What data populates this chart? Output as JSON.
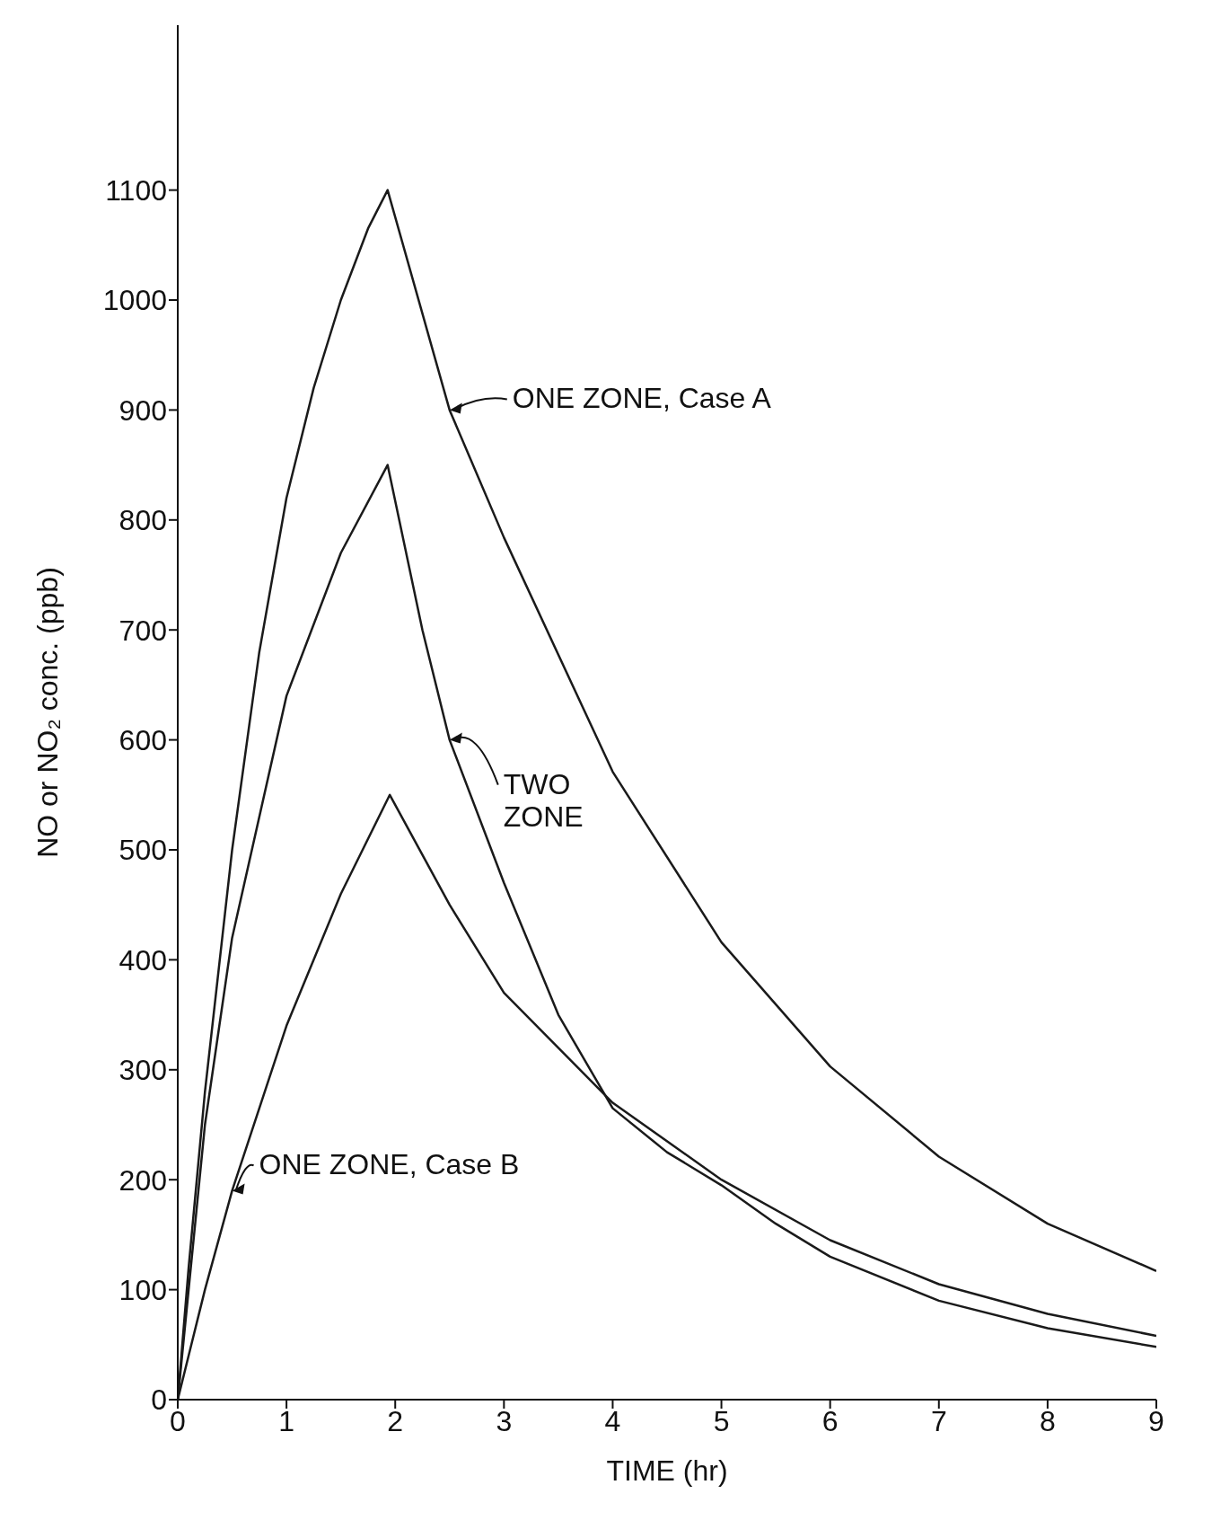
{
  "chart_data": {
    "type": "line",
    "xlabel": "TIME (hr)",
    "ylabel": "NO or NO₂ conc. (ppb)",
    "xlim": [
      0,
      9
    ],
    "xticks": [
      0,
      1,
      2,
      3,
      4,
      5,
      6,
      7,
      8,
      9
    ],
    "ylim": [
      0,
      1250
    ],
    "yticks": [
      0,
      100,
      200,
      300,
      400,
      500,
      600,
      700,
      800,
      900,
      1000,
      1100
    ],
    "grid": false,
    "legend": "left",
    "marker": "none",
    "line_style": "solid",
    "series": [
      {
        "name": "ONE ZONE, Case A",
        "color": "#1a1a1a",
        "x": [
          0,
          0.1,
          0.25,
          0.5,
          0.75,
          1,
          1.25,
          1.5,
          1.75,
          1.93,
          2.5,
          3,
          4,
          5,
          6,
          7,
          8,
          9
        ],
        "values": [
          0,
          120,
          280,
          500,
          680,
          820,
          920,
          1000,
          1065,
          1100,
          900,
          784,
          571,
          416,
          303,
          221,
          160,
          117
        ]
      },
      {
        "name": "TWO ZONE",
        "color": "#1a1a1a",
        "x": [
          0,
          0.1,
          0.25,
          0.5,
          1,
          1.5,
          1.93,
          2.25,
          2.5,
          3,
          3.5,
          4,
          4.5,
          5,
          5.5,
          6,
          7,
          8,
          9
        ],
        "values": [
          0,
          100,
          250,
          420,
          640,
          770,
          850,
          700,
          600,
          470,
          350,
          265,
          225,
          195,
          160,
          130,
          90,
          65,
          48
        ]
      },
      {
        "name": "ONE ZONE, Case B",
        "color": "#1a1a1a",
        "x": [
          0,
          0.1,
          0.25,
          0.5,
          1,
          1.5,
          1.95,
          2.5,
          3,
          4,
          5,
          6,
          7,
          8,
          9
        ],
        "values": [
          0,
          40,
          100,
          190,
          340,
          460,
          550,
          450,
          370,
          270,
          200,
          145,
          105,
          78,
          58
        ]
      }
    ]
  }
}
